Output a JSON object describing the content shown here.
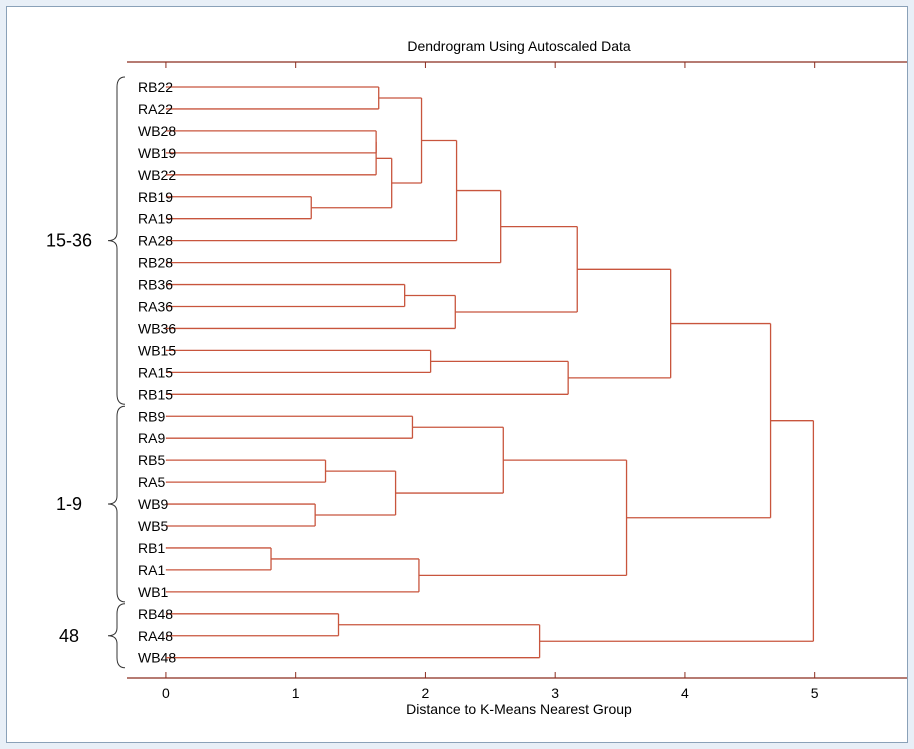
{
  "colors": {
    "line": "#c8553d",
    "axis": "#8b2c1f",
    "frame_border": "#8aa1b8",
    "background": "#e8eff7"
  },
  "chart_data": {
    "type": "dendrogram",
    "title": "Dendrogram Using Autoscaled Data",
    "xlabel": "Distance to K-Means Nearest Group",
    "xlim": [
      -0.3,
      5.75
    ],
    "xticks": [
      0,
      1,
      2,
      3,
      4,
      5
    ],
    "leaves": [
      "RB22",
      "RA22",
      "WB28",
      "WB19",
      "WB22",
      "RB19",
      "RA19",
      "RA28",
      "RB28",
      "RB36",
      "RA36",
      "WB36",
      "WB15",
      "RA15",
      "RB15",
      "RB9",
      "RA9",
      "RB5",
      "RA5",
      "WB9",
      "WB5",
      "RB1",
      "RA1",
      "WB1",
      "RB48",
      "RA48",
      "WB48"
    ],
    "groups": [
      {
        "label": "15-36",
        "from": "RB22",
        "to": "RB15"
      },
      {
        "label": "1-9",
        "from": "RB9",
        "to": "WB1"
      },
      {
        "label": "48",
        "from": "RB48",
        "to": "WB48"
      }
    ],
    "merges": [
      {
        "id": "m1",
        "children": [
          "RB22",
          "RA22"
        ],
        "height": 1.64
      },
      {
        "id": "m2",
        "children": [
          "WB28",
          "WB19"
        ],
        "height": 1.62
      },
      {
        "id": "m3",
        "children": [
          "m2",
          "WB22"
        ],
        "height": 1.62
      },
      {
        "id": "m4",
        "children": [
          "RB19",
          "RA19"
        ],
        "height": 1.12
      },
      {
        "id": "m5",
        "children": [
          "m3",
          "m4"
        ],
        "height": 1.74
      },
      {
        "id": "m6",
        "children": [
          "m1",
          "m5"
        ],
        "height": 1.97
      },
      {
        "id": "m7",
        "children": [
          "m6",
          "RA28"
        ],
        "height": 2.24
      },
      {
        "id": "m8",
        "children": [
          "m7",
          "RB28"
        ],
        "height": 2.58
      },
      {
        "id": "m9",
        "children": [
          "RB36",
          "RA36"
        ],
        "height": 1.84
      },
      {
        "id": "m10",
        "children": [
          "m9",
          "WB36"
        ],
        "height": 2.23
      },
      {
        "id": "m11",
        "children": [
          "m8",
          "m10"
        ],
        "height": 3.17
      },
      {
        "id": "m12",
        "children": [
          "WB15",
          "RA15"
        ],
        "height": 2.04
      },
      {
        "id": "m13",
        "children": [
          "m12",
          "RB15"
        ],
        "height": 3.1
      },
      {
        "id": "m14",
        "children": [
          "m11",
          "m13"
        ],
        "height": 3.89
      },
      {
        "id": "m15",
        "children": [
          "RB9",
          "RA9"
        ],
        "height": 1.9
      },
      {
        "id": "m16",
        "children": [
          "RB5",
          "RA5"
        ],
        "height": 1.23
      },
      {
        "id": "m17",
        "children": [
          "WB9",
          "WB5"
        ],
        "height": 1.15
      },
      {
        "id": "m18",
        "children": [
          "m16",
          "m17"
        ],
        "height": 1.77
      },
      {
        "id": "m19",
        "children": [
          "m15",
          "m18"
        ],
        "height": 2.6
      },
      {
        "id": "m20",
        "children": [
          "RB1",
          "RA1"
        ],
        "height": 0.81
      },
      {
        "id": "m21",
        "children": [
          "m20",
          "WB1"
        ],
        "height": 1.95
      },
      {
        "id": "m22",
        "children": [
          "m19",
          "m21"
        ],
        "height": 3.55
      },
      {
        "id": "m23",
        "children": [
          "m14",
          "m22"
        ],
        "height": 4.66
      },
      {
        "id": "m24",
        "children": [
          "RB48",
          "RA48"
        ],
        "height": 1.33
      },
      {
        "id": "m25",
        "children": [
          "m24",
          "WB48"
        ],
        "height": 2.88
      },
      {
        "id": "m26",
        "children": [
          "m23",
          "m25"
        ],
        "height": 4.99
      }
    ]
  }
}
